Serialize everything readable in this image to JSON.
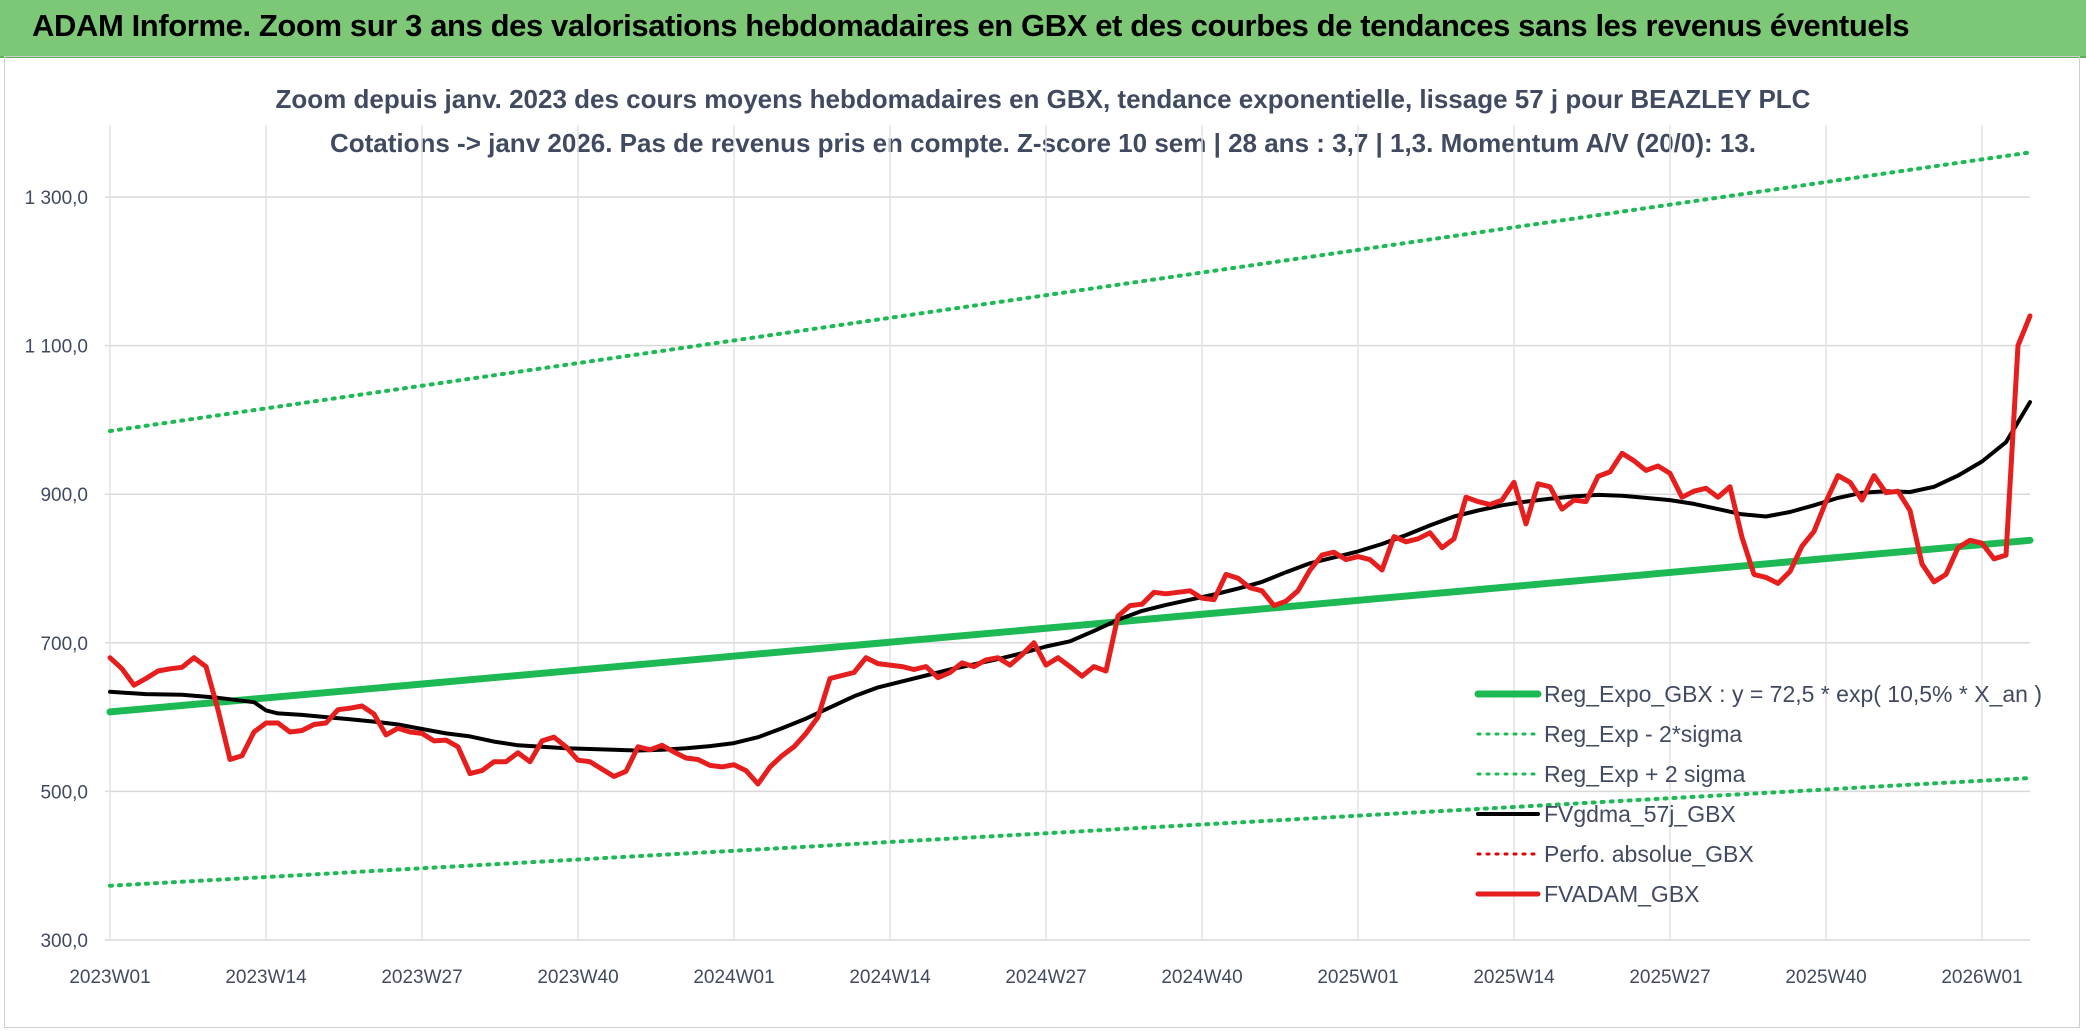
{
  "banner": {
    "title": "ADAM Informe. Zoom sur 3 ans des valorisations hebdomadaires en GBX et des courbes de tendances sans les revenus éventuels"
  },
  "chart_data": {
    "type": "line",
    "title": "Zoom depuis janv. 2023 des cours moyens hebdomadaires en GBX, tendance exponentielle, lissage 57 j pour BEAZLEY PLC",
    "subtitle": "Cotations -> janv 2026. Pas de revenus pris en compte. Z-score 10 sem | 28 ans : 3,7 | 1,3. Momentum A/V (20/0): 13.",
    "xlabel": "",
    "ylabel": "",
    "ylim": [
      300,
      1400
    ],
    "xlim": [
      0,
      160
    ],
    "grid": true,
    "legend_position": "bottom-right",
    "y_ticks": [
      {
        "value": 300,
        "label": "300,0"
      },
      {
        "value": 500,
        "label": "500,0"
      },
      {
        "value": 700,
        "label": "700,0"
      },
      {
        "value": 900,
        "label": "900,0"
      },
      {
        "value": 1100,
        "label": "1 100,0"
      },
      {
        "value": 1300,
        "label": "1 300,0"
      }
    ],
    "x_ticks": [
      {
        "value": 0,
        "label": "2023W01"
      },
      {
        "value": 13,
        "label": "2023W14"
      },
      {
        "value": 26,
        "label": "2023W27"
      },
      {
        "value": 39,
        "label": "2023W40"
      },
      {
        "value": 52,
        "label": "2024W01"
      },
      {
        "value": 65,
        "label": "2024W14"
      },
      {
        "value": 78,
        "label": "2024W27"
      },
      {
        "value": 91,
        "label": "2024W40"
      },
      {
        "value": 104,
        "label": "2025W01"
      },
      {
        "value": 117,
        "label": "2025W14"
      },
      {
        "value": 130,
        "label": "2025W27"
      },
      {
        "value": 143,
        "label": "2025W40"
      },
      {
        "value": 156,
        "label": "2026W01"
      }
    ],
    "series": [
      {
        "name": "Reg_Expo_GBX : y = 72,5 * exp( 10,5% *  X_an )",
        "color": "#1db954",
        "style": "solid",
        "width": 7,
        "points": [
          [
            0,
            607
          ],
          [
            160,
            838
          ]
        ]
      },
      {
        "name": "Reg_Exp - 2*sigma",
        "color": "#1db954",
        "style": "dotted",
        "width": 4,
        "points": [
          [
            0,
            373
          ],
          [
            160,
            518
          ]
        ]
      },
      {
        "name": "Reg_Exp + 2 sigma",
        "color": "#1db954",
        "style": "dotted",
        "width": 4,
        "points": [
          [
            0,
            985
          ],
          [
            160,
            1360
          ]
        ]
      },
      {
        "name": "FVgdma_57j_GBX",
        "color": "#000000",
        "style": "solid",
        "width": 4,
        "points": [
          [
            0,
            634
          ],
          [
            3,
            631
          ],
          [
            6,
            630
          ],
          [
            9,
            626
          ],
          [
            12,
            620
          ],
          [
            13,
            609
          ],
          [
            14,
            605
          ],
          [
            16,
            603
          ],
          [
            18,
            600
          ],
          [
            20,
            597
          ],
          [
            22,
            594
          ],
          [
            24,
            590
          ],
          [
            26,
            584
          ],
          [
            28,
            578
          ],
          [
            30,
            574
          ],
          [
            32,
            567
          ],
          [
            34,
            562
          ],
          [
            36,
            560
          ],
          [
            38,
            558
          ],
          [
            40,
            557
          ],
          [
            42,
            556
          ],
          [
            44,
            555
          ],
          [
            46,
            556
          ],
          [
            48,
            558
          ],
          [
            50,
            561
          ],
          [
            52,
            565
          ],
          [
            54,
            573
          ],
          [
            56,
            585
          ],
          [
            58,
            598
          ],
          [
            60,
            613
          ],
          [
            62,
            628
          ],
          [
            64,
            640
          ],
          [
            66,
            648
          ],
          [
            68,
            656
          ],
          [
            70,
            664
          ],
          [
            72,
            671
          ],
          [
            74,
            678
          ],
          [
            76,
            686
          ],
          [
            78,
            695
          ],
          [
            80,
            702
          ],
          [
            82,
            716
          ],
          [
            84,
            731
          ],
          [
            86,
            743
          ],
          [
            88,
            751
          ],
          [
            90,
            758
          ],
          [
            92,
            765
          ],
          [
            94,
            773
          ],
          [
            96,
            782
          ],
          [
            98,
            795
          ],
          [
            100,
            807
          ],
          [
            102,
            815
          ],
          [
            104,
            823
          ],
          [
            106,
            833
          ],
          [
            108,
            845
          ],
          [
            110,
            858
          ],
          [
            112,
            870
          ],
          [
            114,
            878
          ],
          [
            116,
            885
          ],
          [
            118,
            890
          ],
          [
            120,
            894
          ],
          [
            122,
            897
          ],
          [
            124,
            899
          ],
          [
            126,
            898
          ],
          [
            128,
            895
          ],
          [
            130,
            892
          ],
          [
            132,
            887
          ],
          [
            134,
            880
          ],
          [
            136,
            873
          ],
          [
            138,
            870
          ],
          [
            140,
            876
          ],
          [
            142,
            885
          ],
          [
            144,
            895
          ],
          [
            146,
            902
          ],
          [
            148,
            904
          ],
          [
            150,
            903
          ],
          [
            152,
            910
          ],
          [
            154,
            925
          ],
          [
            156,
            944
          ],
          [
            158,
            970
          ],
          [
            160,
            1024
          ]
        ]
      },
      {
        "name": "Perfo. absolue_GBX",
        "color": "#e00000",
        "style": "dotted",
        "width": 3,
        "points": []
      },
      {
        "name": "FVADAM_GBX",
        "color": "#e61e1e",
        "style": "solid",
        "width": 5,
        "points": [
          [
            0,
            680
          ],
          [
            1,
            665
          ],
          [
            2,
            643
          ],
          [
            3,
            652
          ],
          [
            4,
            662
          ],
          [
            5,
            665
          ],
          [
            6,
            667
          ],
          [
            7,
            680
          ],
          [
            8,
            668
          ],
          [
            9,
            610
          ],
          [
            10,
            543
          ],
          [
            11,
            548
          ],
          [
            12,
            580
          ],
          [
            13,
            592
          ],
          [
            14,
            592
          ],
          [
            15,
            580
          ],
          [
            16,
            582
          ],
          [
            17,
            590
          ],
          [
            18,
            592
          ],
          [
            19,
            610
          ],
          [
            20,
            612
          ],
          [
            21,
            615
          ],
          [
            22,
            604
          ],
          [
            23,
            576
          ],
          [
            24,
            585
          ],
          [
            25,
            580
          ],
          [
            26,
            578
          ],
          [
            27,
            568
          ],
          [
            28,
            569
          ],
          [
            29,
            560
          ],
          [
            30,
            524
          ],
          [
            31,
            528
          ],
          [
            32,
            540
          ],
          [
            33,
            540
          ],
          [
            34,
            552
          ],
          [
            35,
            540
          ],
          [
            36,
            568
          ],
          [
            37,
            573
          ],
          [
            38,
            560
          ],
          [
            39,
            542
          ],
          [
            40,
            540
          ],
          [
            41,
            530
          ],
          [
            42,
            520
          ],
          [
            43,
            527
          ],
          [
            44,
            560
          ],
          [
            45,
            556
          ],
          [
            46,
            562
          ],
          [
            47,
            553
          ],
          [
            48,
            545
          ],
          [
            49,
            543
          ],
          [
            50,
            535
          ],
          [
            51,
            533
          ],
          [
            52,
            536
          ],
          [
            53,
            528
          ],
          [
            54,
            510
          ],
          [
            55,
            533
          ],
          [
            56,
            548
          ],
          [
            57,
            560
          ],
          [
            58,
            578
          ],
          [
            59,
            600
          ],
          [
            60,
            652
          ],
          [
            61,
            656
          ],
          [
            62,
            660
          ],
          [
            63,
            680
          ],
          [
            64,
            672
          ],
          [
            65,
            670
          ],
          [
            66,
            668
          ],
          [
            67,
            664
          ],
          [
            68,
            668
          ],
          [
            69,
            653
          ],
          [
            70,
            660
          ],
          [
            71,
            673
          ],
          [
            72,
            668
          ],
          [
            73,
            677
          ],
          [
            74,
            680
          ],
          [
            75,
            670
          ],
          [
            76,
            684
          ],
          [
            77,
            700
          ],
          [
            78,
            670
          ],
          [
            79,
            680
          ],
          [
            80,
            668
          ],
          [
            81,
            655
          ],
          [
            82,
            668
          ],
          [
            83,
            662
          ],
          [
            84,
            736
          ],
          [
            85,
            750
          ],
          [
            86,
            752
          ],
          [
            87,
            768
          ],
          [
            88,
            766
          ],
          [
            89,
            768
          ],
          [
            90,
            770
          ],
          [
            91,
            760
          ],
          [
            92,
            758
          ],
          [
            93,
            792
          ],
          [
            94,
            787
          ],
          [
            95,
            774
          ],
          [
            96,
            770
          ],
          [
            97,
            750
          ],
          [
            98,
            756
          ],
          [
            99,
            770
          ],
          [
            100,
            798
          ],
          [
            101,
            818
          ],
          [
            102,
            822
          ],
          [
            103,
            812
          ],
          [
            104,
            816
          ],
          [
            105,
            812
          ],
          [
            106,
            798
          ],
          [
            107,
            843
          ],
          [
            108,
            836
          ],
          [
            109,
            840
          ],
          [
            110,
            848
          ],
          [
            111,
            828
          ],
          [
            112,
            840
          ],
          [
            113,
            896
          ],
          [
            114,
            890
          ],
          [
            115,
            886
          ],
          [
            116,
            892
          ],
          [
            117,
            916
          ],
          [
            118,
            860
          ],
          [
            119,
            914
          ],
          [
            120,
            910
          ],
          [
            121,
            880
          ],
          [
            122,
            892
          ],
          [
            123,
            890
          ],
          [
            124,
            924
          ],
          [
            125,
            930
          ],
          [
            126,
            955
          ],
          [
            127,
            945
          ],
          [
            128,
            932
          ],
          [
            129,
            938
          ],
          [
            130,
            928
          ],
          [
            131,
            896
          ],
          [
            132,
            904
          ],
          [
            133,
            908
          ],
          [
            134,
            896
          ],
          [
            135,
            910
          ],
          [
            136,
            842
          ],
          [
            137,
            792
          ],
          [
            138,
            788
          ],
          [
            139,
            780
          ],
          [
            140,
            796
          ],
          [
            141,
            830
          ],
          [
            142,
            850
          ],
          [
            143,
            890
          ],
          [
            144,
            925
          ],
          [
            145,
            916
          ],
          [
            146,
            892
          ],
          [
            147,
            925
          ],
          [
            148,
            902
          ],
          [
            149,
            904
          ],
          [
            150,
            878
          ],
          [
            151,
            806
          ],
          [
            152,
            782
          ],
          [
            153,
            792
          ],
          [
            154,
            828
          ],
          [
            155,
            838
          ],
          [
            156,
            834
          ],
          [
            157,
            813
          ],
          [
            158,
            818
          ],
          [
            159,
            1100
          ],
          [
            160,
            1140
          ]
        ]
      }
    ]
  }
}
